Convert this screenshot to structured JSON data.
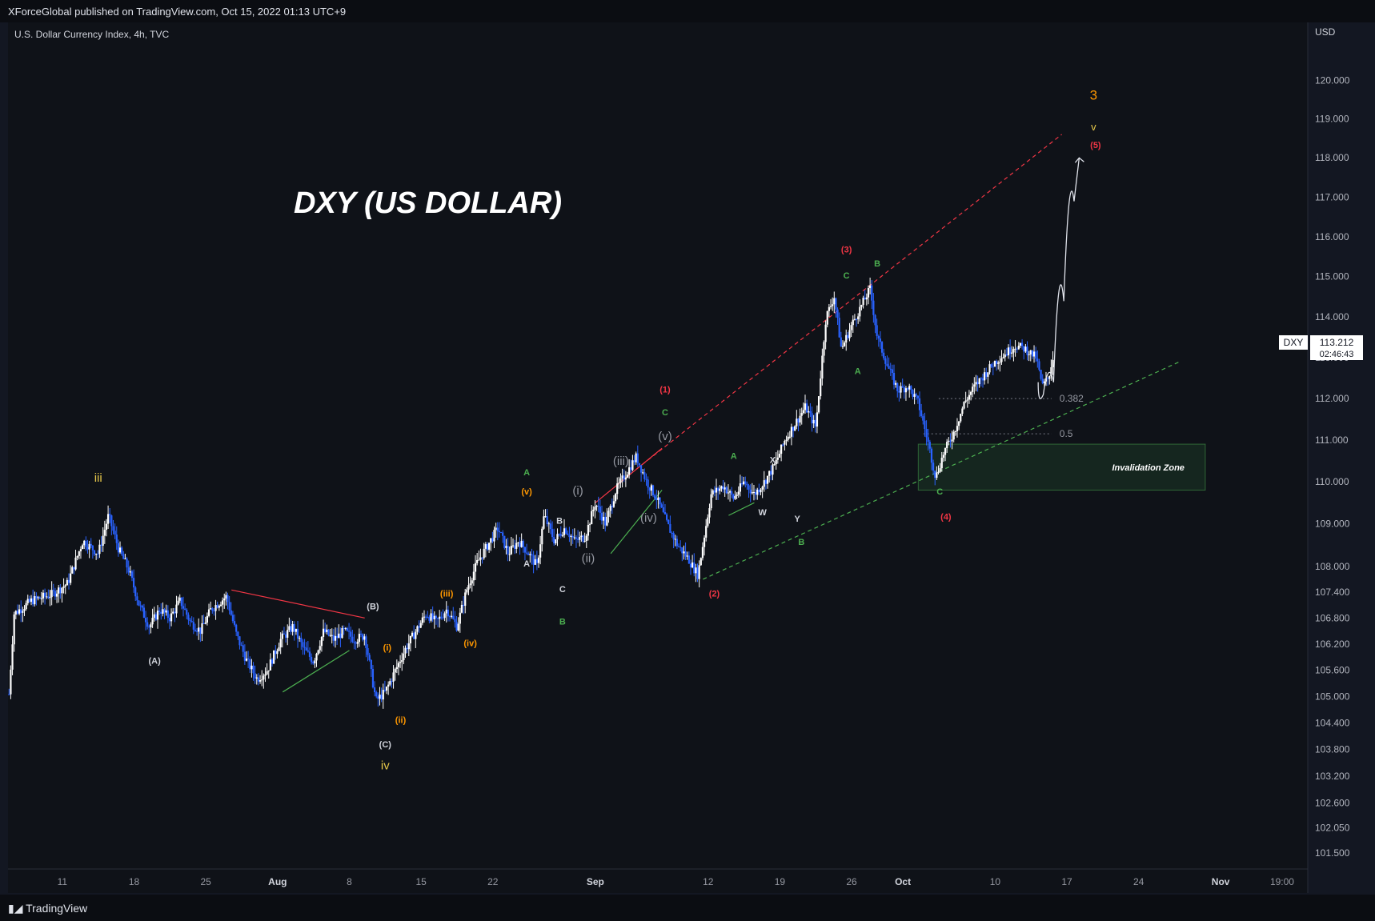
{
  "header": {
    "published_by": "XForceGlobal published on TradingView.com, Oct 15, 2022 01:13 UTC+9"
  },
  "footer": {
    "brand": "TradingView"
  },
  "symbol_line": "U.S. Dollar Currency Index, 4h, TVC",
  "currency": "USD",
  "price_badge": {
    "ticker": "DXY",
    "price": "113.212",
    "countdown": "02:46:43"
  },
  "colors": {
    "background": "#131722",
    "up_candle": "#ffffff",
    "down_candle": "#2962ff",
    "red_trend": "#f23645",
    "green_trend": "#4caf50",
    "orange_label": "#ff9800",
    "yellow_label": "#e6c84a"
  },
  "chart_data": {
    "type": "candlestick",
    "title": "DXY (US DOLLAR)",
    "timeframe": "4h",
    "x_ticks": [
      {
        "label": "11",
        "day": 11
      },
      {
        "label": "18",
        "day": 18
      },
      {
        "label": "25",
        "day": 25
      },
      {
        "label": "Aug",
        "day": 32
      },
      {
        "label": "8",
        "day": 39
      },
      {
        "label": "15",
        "day": 46
      },
      {
        "label": "22",
        "day": 53
      },
      {
        "label": "Sep",
        "day": 63
      },
      {
        "label": "12",
        "day": 74
      },
      {
        "label": "19",
        "day": 81
      },
      {
        "label": "26",
        "day": 88
      },
      {
        "label": "Oct",
        "day": 93
      },
      {
        "label": "10",
        "day": 102
      },
      {
        "label": "17",
        "day": 109
      },
      {
        "label": "24",
        "day": 116
      },
      {
        "label": "Nov",
        "day": 124
      },
      {
        "label": "19:00",
        "day": 130
      }
    ],
    "x_range_days": [
      5.7,
      132.5
    ],
    "y_axis": {
      "scale": "log",
      "range": [
        101.25,
        120.8
      ],
      "ticks": [
        "120.000",
        "119.000",
        "118.000",
        "117.000",
        "116.000",
        "115.000",
        "114.000",
        "113.000",
        "112.000",
        "111.000",
        "110.000",
        "109.000",
        "108.000",
        "107.400",
        "106.800",
        "106.200",
        "105.600",
        "105.000",
        "104.400",
        "103.800",
        "103.200",
        "102.600",
        "102.050",
        "101.500"
      ]
    },
    "close_path": [
      {
        "day": 5.8,
        "price": 105.05
      },
      {
        "day": 6.3,
        "price": 106.9
      },
      {
        "day": 8,
        "price": 107.2
      },
      {
        "day": 10,
        "price": 107.35
      },
      {
        "day": 11.5,
        "price": 107.6
      },
      {
        "day": 13,
        "price": 108.6
      },
      {
        "day": 14.5,
        "price": 108.3
      },
      {
        "day": 15.5,
        "price": 109.2
      },
      {
        "day": 16.5,
        "price": 108.4
      },
      {
        "day": 17.5,
        "price": 107.9
      },
      {
        "day": 18.5,
        "price": 107.1
      },
      {
        "day": 19.5,
        "price": 106.6
      },
      {
        "day": 20.5,
        "price": 107.0
      },
      {
        "day": 21.5,
        "price": 106.8
      },
      {
        "day": 22.5,
        "price": 107.2
      },
      {
        "day": 23.5,
        "price": 106.7
      },
      {
        "day": 24.5,
        "price": 106.5
      },
      {
        "day": 25.5,
        "price": 107.0
      },
      {
        "day": 27,
        "price": 107.3
      },
      {
        "day": 28,
        "price": 106.4
      },
      {
        "day": 29,
        "price": 105.8
      },
      {
        "day": 30,
        "price": 105.4
      },
      {
        "day": 31,
        "price": 105.6
      },
      {
        "day": 32.3,
        "price": 106.3
      },
      {
        "day": 33.5,
        "price": 106.6
      },
      {
        "day": 34.5,
        "price": 106.1
      },
      {
        "day": 35.5,
        "price": 105.8
      },
      {
        "day": 36.5,
        "price": 106.5
      },
      {
        "day": 37.5,
        "price": 106.3
      },
      {
        "day": 38.5,
        "price": 106.5
      },
      {
        "day": 39.5,
        "price": 106.3
      },
      {
        "day": 40.5,
        "price": 106.4
      },
      {
        "day": 41,
        "price": 105.7
      },
      {
        "day": 41.6,
        "price": 104.9
      },
      {
        "day": 42.5,
        "price": 105.1
      },
      {
        "day": 43.5,
        "price": 105.6
      },
      {
        "day": 44.5,
        "price": 106.1
      },
      {
        "day": 45.5,
        "price": 106.5
      },
      {
        "day": 46.5,
        "price": 106.9
      },
      {
        "day": 47.5,
        "price": 106.7
      },
      {
        "day": 48.5,
        "price": 107.0
      },
      {
        "day": 49.5,
        "price": 106.6
      },
      {
        "day": 50.5,
        "price": 107.5
      },
      {
        "day": 51.5,
        "price": 108.1
      },
      {
        "day": 52.5,
        "price": 108.5
      },
      {
        "day": 53.5,
        "price": 108.9
      },
      {
        "day": 54.5,
        "price": 108.3
      },
      {
        "day": 55.5,
        "price": 108.6
      },
      {
        "day": 56.5,
        "price": 108.3
      },
      {
        "day": 57.3,
        "price": 108.0
      },
      {
        "day": 58,
        "price": 109.2
      },
      {
        "day": 59,
        "price": 108.6
      },
      {
        "day": 60,
        "price": 108.9
      },
      {
        "day": 61,
        "price": 108.6
      },
      {
        "day": 62,
        "price": 108.7
      },
      {
        "day": 63,
        "price": 109.5
      },
      {
        "day": 64,
        "price": 109.0
      },
      {
        "day": 65,
        "price": 109.8
      },
      {
        "day": 66,
        "price": 110.2
      },
      {
        "day": 67,
        "price": 110.6
      },
      {
        "day": 68,
        "price": 110.0
      },
      {
        "day": 69,
        "price": 109.6
      },
      {
        "day": 70,
        "price": 109.0
      },
      {
        "day": 71,
        "price": 108.5
      },
      {
        "day": 72,
        "price": 108.2
      },
      {
        "day": 73,
        "price": 107.8
      },
      {
        "day": 74.3,
        "price": 109.7
      },
      {
        "day": 75.5,
        "price": 109.9
      },
      {
        "day": 76.5,
        "price": 109.6
      },
      {
        "day": 77.5,
        "price": 110.0
      },
      {
        "day": 78.5,
        "price": 109.7
      },
      {
        "day": 79.5,
        "price": 110.0
      },
      {
        "day": 80.5,
        "price": 110.4
      },
      {
        "day": 81.5,
        "price": 111.0
      },
      {
        "day": 82.5,
        "price": 111.4
      },
      {
        "day": 83.5,
        "price": 111.8
      },
      {
        "day": 84.5,
        "price": 111.3
      },
      {
        "day": 85.5,
        "price": 114.0
      },
      {
        "day": 86.3,
        "price": 114.5
      },
      {
        "day": 87,
        "price": 113.2
      },
      {
        "day": 88,
        "price": 113.8
      },
      {
        "day": 89,
        "price": 114.3
      },
      {
        "day": 89.8,
        "price": 114.7
      },
      {
        "day": 90.5,
        "price": 113.5
      },
      {
        "day": 91.5,
        "price": 112.8
      },
      {
        "day": 92.5,
        "price": 112.2
      },
      {
        "day": 93.5,
        "price": 112.3
      },
      {
        "day": 94.5,
        "price": 111.9
      },
      {
        "day": 95.5,
        "price": 110.9
      },
      {
        "day": 96.2,
        "price": 110.1
      },
      {
        "day": 97,
        "price": 110.7
      },
      {
        "day": 98,
        "price": 111.2
      },
      {
        "day": 99,
        "price": 111.9
      },
      {
        "day": 100,
        "price": 112.3
      },
      {
        "day": 101,
        "price": 112.6
      },
      {
        "day": 102,
        "price": 112.9
      },
      {
        "day": 103,
        "price": 113.1
      },
      {
        "day": 104,
        "price": 113.3
      },
      {
        "day": 105,
        "price": 113.2
      },
      {
        "day": 106,
        "price": 113.0
      },
      {
        "day": 106.6,
        "price": 112.3
      },
      {
        "day": 107.2,
        "price": 112.5
      },
      {
        "day": 107.8,
        "price": 113.2
      }
    ],
    "fibonacci": [
      {
        "level": "0.382",
        "price": 112.0,
        "from_day": 96.5,
        "to_day": 107.5
      },
      {
        "level": "0.5",
        "price": 111.15,
        "from_day": 95.0,
        "to_day": 107.5
      }
    ],
    "invalidation_zone": {
      "label": "Invalidation Zone",
      "from_day": 94.5,
      "to_day": 122.5,
      "price_low": 109.8,
      "price_high": 110.9
    },
    "projection": [
      {
        "day": 106.2,
        "price": 112.4
      },
      {
        "day": 107.2,
        "price": 111.8
      },
      {
        "day": 108.2,
        "price": 113.0
      },
      {
        "day": 109.2,
        "price": 115.8
      },
      {
        "day": 110.2,
        "price": 118.0
      }
    ],
    "trendlines": [
      {
        "color": "red",
        "style": "dashed",
        "from": {
          "day": 67,
          "price": 110.3
        },
        "to": {
          "day": 108.5,
          "price": 118.6
        }
      },
      {
        "color": "green",
        "style": "dashed",
        "from": {
          "day": 73.5,
          "price": 107.7
        },
        "to": {
          "day": 120,
          "price": 112.9
        }
      },
      {
        "color": "red",
        "style": "solid",
        "from": {
          "day": 27.5,
          "price": 107.45
        },
        "to": {
          "day": 40.5,
          "price": 106.8
        }
      },
      {
        "color": "green",
        "style": "solid",
        "from": {
          "day": 32.5,
          "price": 105.1
        },
        "to": {
          "day": 39,
          "price": 106.05
        }
      },
      {
        "color": "red",
        "style": "solid",
        "from": {
          "day": 63,
          "price": 109.5
        },
        "to": {
          "day": 69.5,
          "price": 110.8
        }
      },
      {
        "color": "green",
        "style": "solid",
        "from": {
          "day": 64.5,
          "price": 108.3
        },
        "to": {
          "day": 69.5,
          "price": 109.8
        }
      },
      {
        "color": "green",
        "style": "solid",
        "from": {
          "day": 76,
          "price": 109.2
        },
        "to": {
          "day": 78.5,
          "price": 109.5
        }
      }
    ],
    "wave_labels": [
      {
        "text": "iii",
        "day": 14.5,
        "price": 110.0,
        "color": "yellow",
        "size": 15
      },
      {
        "text": "(A)",
        "day": 20,
        "price": 105.75,
        "color": "white",
        "size": 11
      },
      {
        "text": "(B)",
        "day": 41.3,
        "price": 107.0,
        "color": "white",
        "size": 11
      },
      {
        "text": "(C)",
        "day": 42.5,
        "price": 103.85,
        "color": "white",
        "size": 11
      },
      {
        "text": "iv",
        "day": 42.5,
        "price": 103.35,
        "color": "yellow",
        "size": 15
      },
      {
        "text": "(i)",
        "day": 42.7,
        "price": 106.05,
        "color": "orange",
        "size": 11
      },
      {
        "text": "(ii)",
        "day": 44,
        "price": 104.4,
        "color": "orange",
        "size": 11
      },
      {
        "text": "(iii)",
        "day": 48.5,
        "price": 107.3,
        "color": "orange",
        "size": 11
      },
      {
        "text": "(iv)",
        "day": 50.8,
        "price": 106.15,
        "color": "orange",
        "size": 11
      },
      {
        "text": "(v)",
        "day": 56.3,
        "price": 109.7,
        "color": "orange",
        "size": 11
      },
      {
        "text": "A",
        "day": 56.3,
        "price": 110.15,
        "color": "green",
        "size": 11
      },
      {
        "text": "A",
        "day": 56.3,
        "price": 108.0,
        "color": "white",
        "size": 11
      },
      {
        "text": "B",
        "day": 59.5,
        "price": 109.0,
        "color": "white",
        "size": 11
      },
      {
        "text": "C",
        "day": 59.8,
        "price": 107.4,
        "color": "white",
        "size": 11
      },
      {
        "text": "B",
        "day": 59.8,
        "price": 106.65,
        "color": "green",
        "size": 11
      },
      {
        "text": "(i)",
        "day": 61.3,
        "price": 109.7,
        "color": "gray",
        "size": 15
      },
      {
        "text": "(ii)",
        "day": 62.3,
        "price": 108.1,
        "color": "gray",
        "size": 15
      },
      {
        "text": "(iii)",
        "day": 65.5,
        "price": 110.4,
        "color": "gray",
        "size": 15
      },
      {
        "text": "(iv)",
        "day": 68.2,
        "price": 109.05,
        "color": "gray",
        "size": 15
      },
      {
        "text": "(v)",
        "day": 69.8,
        "price": 111.0,
        "color": "gray",
        "size": 15
      },
      {
        "text": "C",
        "day": 69.8,
        "price": 111.6,
        "color": "green",
        "size": 11
      },
      {
        "text": "(1)",
        "day": 69.8,
        "price": 112.15,
        "color": "red",
        "size": 11
      },
      {
        "text": "(2)",
        "day": 74.6,
        "price": 107.3,
        "color": "red",
        "size": 11
      },
      {
        "text": "A",
        "day": 76.5,
        "price": 110.55,
        "color": "green",
        "size": 11
      },
      {
        "text": "W",
        "day": 79.3,
        "price": 109.2,
        "color": "white",
        "size": 11
      },
      {
        "text": "X",
        "day": 80.3,
        "price": 110.45,
        "color": "white",
        "size": 11
      },
      {
        "text": "Y",
        "day": 82.7,
        "price": 109.05,
        "color": "white",
        "size": 11
      },
      {
        "text": "B",
        "day": 83.1,
        "price": 108.5,
        "color": "green",
        "size": 11
      },
      {
        "text": "(3)",
        "day": 87.5,
        "price": 115.6,
        "color": "red",
        "size": 11
      },
      {
        "text": "C",
        "day": 87.5,
        "price": 114.95,
        "color": "green",
        "size": 11
      },
      {
        "text": "B",
        "day": 90.5,
        "price": 115.25,
        "color": "green",
        "size": 11
      },
      {
        "text": "A",
        "day": 88.6,
        "price": 112.6,
        "color": "green",
        "size": 11
      },
      {
        "text": "C",
        "day": 96.6,
        "price": 109.7,
        "color": "green",
        "size": 11
      },
      {
        "text": "(4)",
        "day": 97.2,
        "price": 109.1,
        "color": "red",
        "size": 11
      },
      {
        "text": "3",
        "day": 111.6,
        "price": 119.5,
        "color": "orange",
        "size": 17
      },
      {
        "text": "v",
        "day": 111.6,
        "price": 118.7,
        "color": "yellow",
        "size": 13
      },
      {
        "text": "(5)",
        "day": 111.8,
        "price": 118.25,
        "color": "red",
        "size": 11
      }
    ]
  }
}
